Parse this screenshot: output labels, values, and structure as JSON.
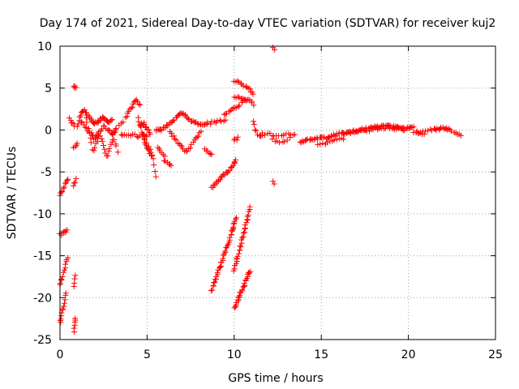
{
  "chart_data": {
    "type": "scatter",
    "title": "Day 174 of 2021, Sidereal Day-to-day VTEC variation (SDTVAR) for receiver kuj2",
    "xlabel": "GPS time / hours",
    "ylabel": "SDTVAR / TECUs",
    "xlim": [
      0,
      25
    ],
    "ylim": [
      -25,
      10
    ],
    "xticks": [
      0,
      5,
      10,
      15,
      20,
      25
    ],
    "yticks": [
      -25,
      -20,
      -15,
      -10,
      -5,
      0,
      5,
      10
    ],
    "grid": true,
    "marker": "+",
    "colors": {
      "series": "#ff0000",
      "grid": "#a0a0a0",
      "axis": "#000000"
    },
    "series": [
      {
        "name": "SDTVAR",
        "tracks": [
          {
            "x": [
              0.0,
              0.15,
              0.3,
              0.45
            ],
            "y": [
              -7.8,
              -7.2,
              -6.5,
              -5.9
            ],
            "n": 10
          },
          {
            "x": [
              0.0,
              0.2,
              0.4
            ],
            "y": [
              -12.5,
              -12.2,
              -12.0
            ],
            "n": 8
          },
          {
            "x": [
              0.0,
              0.15,
              0.3,
              0.45
            ],
            "y": [
              -18.5,
              -17.5,
              -16.3,
              -15.2
            ],
            "n": 12
          },
          {
            "x": [
              0.0,
              0.1,
              0.2,
              0.35
            ],
            "y": [
              -23.0,
              -22.0,
              -20.8,
              -19.5
            ],
            "n": 12
          },
          {
            "x": [
              0.55,
              0.7,
              0.85
            ],
            "y": [
              1.4,
              0.9,
              0.6
            ],
            "n": 6
          },
          {
            "x": [
              0.8,
              0.85,
              0.9
            ],
            "y": [
              5.3,
              5.2,
              5.0
            ],
            "n": 4
          },
          {
            "x": [
              0.8,
              0.9,
              1.0
            ],
            "y": [
              -2.2,
              -1.8,
              -1.5
            ],
            "n": 4
          },
          {
            "x": [
              0.8,
              0.85,
              0.9
            ],
            "y": [
              -6.8,
              -6.3,
              -5.9
            ],
            "n": 4
          },
          {
            "x": [
              0.8,
              0.85,
              0.9
            ],
            "y": [
              -18.8,
              -18.0,
              -17.4
            ],
            "n": 4
          },
          {
            "x": [
              0.8,
              0.85,
              0.9
            ],
            "y": [
              -24.2,
              -23.2,
              -22.4
            ],
            "n": 6
          },
          {
            "x": [
              1.0,
              1.2,
              1.4,
              1.6,
              1.8,
              2.0,
              2.2,
              2.4,
              2.6,
              2.8,
              3.0
            ],
            "y": [
              0.5,
              1.8,
              2.4,
              1.8,
              1.2,
              0.8,
              1.0,
              1.5,
              1.2,
              1.0,
              1.2
            ],
            "n": 40
          },
          {
            "x": [
              1.2,
              1.5,
              1.8,
              2.0,
              2.2,
              2.5,
              2.8,
              3.0,
              3.2
            ],
            "y": [
              1.0,
              0.2,
              -0.5,
              -1.2,
              -0.3,
              0.5,
              0.0,
              -0.5,
              0.0
            ],
            "n": 30
          },
          {
            "x": [
              1.5,
              1.7,
              1.9,
              2.1,
              2.3,
              2.5,
              2.7,
              2.9,
              3.1,
              3.3
            ],
            "y": [
              1.5,
              -0.5,
              -2.5,
              -1.5,
              -0.5,
              -2.0,
              -3.3,
              -2.0,
              -1.0,
              -2.5
            ],
            "n": 30
          },
          {
            "x": [
              3.0,
              3.4,
              3.8,
              4.0,
              4.2,
              4.4,
              4.6
            ],
            "y": [
              -0.5,
              0.5,
              1.5,
              2.3,
              3.0,
              3.6,
              3.0
            ],
            "n": 20
          },
          {
            "x": [
              3.5,
              3.8,
              4.2,
              4.5,
              4.8,
              5.0
            ],
            "y": [
              -0.5,
              -0.7,
              -0.5,
              -0.8,
              -0.6,
              -0.8
            ],
            "n": 16
          },
          {
            "x": [
              4.5,
              4.7,
              4.9,
              5.1,
              5.3
            ],
            "y": [
              1.5,
              -0.5,
              -1.5,
              -2.5,
              -3.0
            ],
            "n": 20
          },
          {
            "x": [
              4.6,
              4.8,
              5.0,
              5.2
            ],
            "y": [
              0.5,
              0.8,
              0.2,
              -0.5
            ],
            "n": 12
          },
          {
            "x": [
              5.0,
              5.2,
              5.4,
              5.5
            ],
            "y": [
              -1.5,
              -2.5,
              -4.0,
              -5.5
            ],
            "n": 8
          },
          {
            "x": [
              5.5,
              5.8,
              6.1,
              6.4,
              6.7,
              7.0,
              7.3,
              7.6,
              7.9,
              8.2,
              8.5,
              9.0,
              9.5
            ],
            "y": [
              0.0,
              0.0,
              0.5,
              1.0,
              1.5,
              2.0,
              1.5,
              1.0,
              0.8,
              0.7,
              0.8,
              1.0,
              1.2
            ],
            "n": 55
          },
          {
            "x": [
              6.3,
              6.6,
              6.9,
              7.2,
              7.5,
              7.8,
              8.1
            ],
            "y": [
              -0.3,
              -1.0,
              -1.8,
              -2.7,
              -2.0,
              -1.0,
              -0.2
            ],
            "n": 24
          },
          {
            "x": [
              5.6,
              5.8,
              6.0
            ],
            "y": [
              -2.0,
              -2.5,
              -3.0
            ],
            "n": 6
          },
          {
            "x": [
              6.0,
              6.2,
              6.4
            ],
            "y": [
              -3.6,
              -4.0,
              -4.3
            ],
            "n": 6
          },
          {
            "x": [
              8.3,
              8.5,
              8.7
            ],
            "y": [
              -2.2,
              -2.7,
              -3.0
            ],
            "n": 6
          },
          {
            "x": [
              9.4,
              9.7,
              10.0,
              10.3,
              10.6
            ],
            "y": [
              1.8,
              2.2,
              2.6,
              3.0,
              3.5
            ],
            "n": 14
          },
          {
            "x": [
              8.7,
              9.0,
              9.3,
              9.6,
              9.9,
              10.1
            ],
            "y": [
              -6.9,
              -6.3,
              -5.6,
              -5.0,
              -4.3,
              -3.6
            ],
            "n": 26
          },
          {
            "x": [
              8.7,
              9.0,
              9.3,
              9.6,
              9.9,
              10.1
            ],
            "y": [
              -19.2,
              -17.4,
              -15.6,
              -13.8,
              -12.0,
              -10.6
            ],
            "n": 42
          },
          {
            "x": [
              10.0,
              10.3,
              10.6,
              10.9
            ],
            "y": [
              -21.3,
              -19.8,
              -18.3,
              -16.8
            ],
            "n": 26
          },
          {
            "x": [
              10.0,
              10.3,
              10.6,
              10.9
            ],
            "y": [
              -16.8,
              -14.3,
              -11.8,
              -9.3
            ],
            "n": 30
          },
          {
            "x": [
              10.0,
              10.3,
              10.6,
              10.9,
              11.1
            ],
            "y": [
              5.9,
              5.6,
              5.2,
              4.8,
              4.4
            ],
            "n": 14
          },
          {
            "x": [
              10.0,
              10.3,
              10.6,
              10.9,
              11.1
            ],
            "y": [
              4.0,
              3.8,
              3.6,
              3.5,
              3.0
            ],
            "n": 14
          },
          {
            "x": [
              10.0,
              10.2
            ],
            "y": [
              -1.2,
              -1.0
            ],
            "n": 4
          },
          {
            "x": [
              11.1,
              11.2,
              11.4,
              11.6
            ],
            "y": [
              1.0,
              0.0,
              -0.7,
              -0.5
            ],
            "n": 8
          },
          {
            "x": [
              12.2,
              12.3
            ],
            "y": [
              9.8,
              9.6
            ],
            "n": 2
          },
          {
            "x": [
              12.2,
              12.3
            ],
            "y": [
              -6.2,
              -6.4
            ],
            "n": 2
          },
          {
            "x": [
              11.5,
              12.0,
              12.5,
              13.0,
              13.5
            ],
            "y": [
              -0.6,
              -0.5,
              -0.8,
              -0.4,
              -0.5
            ],
            "n": 16
          },
          {
            "x": [
              12.2,
              12.7,
              13.2
            ],
            "y": [
              -1.2,
              -1.5,
              -1.0
            ],
            "n": 8
          },
          {
            "x": [
              13.8,
              14.3,
              14.8,
              15.3,
              15.8,
              16.3,
              16.8,
              17.3,
              17.8,
              18.3,
              18.8,
              19.3,
              19.8,
              20.3
            ],
            "y": [
              -1.4,
              -1.2,
              -1.0,
              -0.9,
              -0.6,
              -0.4,
              -0.2,
              0.0,
              0.2,
              0.4,
              0.5,
              0.4,
              0.2,
              0.3
            ],
            "n": 90
          },
          {
            "x": [
              14.8,
              15.3,
              15.8,
              16.3
            ],
            "y": [
              -1.8,
              -1.5,
              -1.2,
              -1.0
            ],
            "n": 12
          },
          {
            "x": [
              16.3,
              16.8,
              17.3,
              17.8,
              18.3,
              18.8,
              19.3,
              19.8
            ],
            "y": [
              -0.4,
              -0.3,
              -0.1,
              0.0,
              0.2,
              0.3,
              0.1,
              -0.1
            ],
            "n": 30
          },
          {
            "x": [
              20.3,
              20.8,
              21.3,
              21.8,
              22.3
            ],
            "y": [
              -0.4,
              -0.3,
              0.0,
              0.1,
              0.2
            ],
            "n": 16
          },
          {
            "x": [
              21.5,
              21.9,
              22.3,
              22.7,
              23.0
            ],
            "y": [
              0.1,
              0.2,
              0.1,
              -0.3,
              -0.6
            ],
            "n": 14
          },
          {
            "x": [
              20.5,
              20.7,
              20.9
            ],
            "y": [
              -0.3,
              -0.6,
              -0.4
            ],
            "n": 4
          }
        ]
      }
    ]
  }
}
